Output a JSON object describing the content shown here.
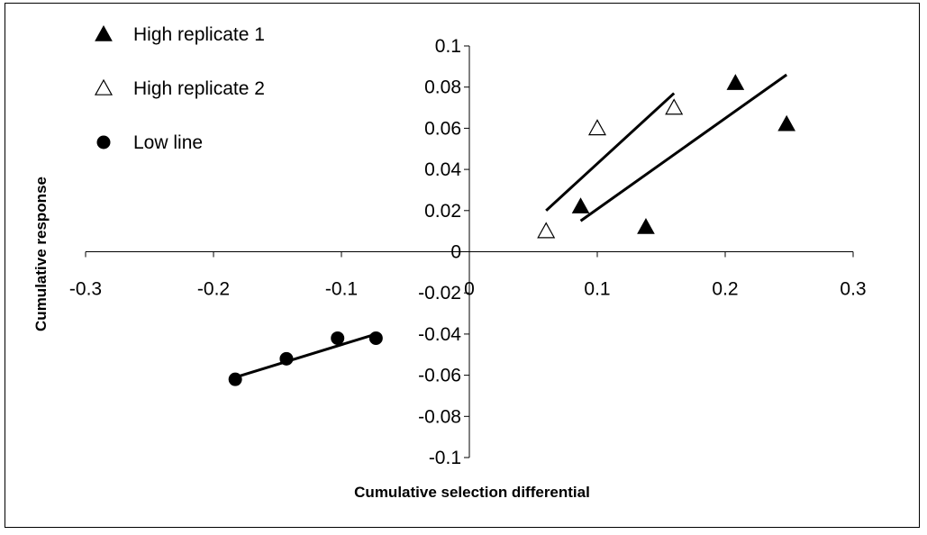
{
  "chart_data": {
    "type": "scatter",
    "xlabel": "Cumulative selection differential",
    "ylabel": "Cumulative response",
    "xlim": [
      -0.3,
      0.3
    ],
    "ylim": [
      -0.1,
      0.1
    ],
    "x_ticks": [
      "-0.3",
      "-0.2",
      "-0.1",
      "0",
      "0.1",
      "0.2",
      "0.3"
    ],
    "y_ticks": [
      "0.1",
      "0.08",
      "0.06",
      "0.04",
      "0.02",
      "0",
      "-0.02",
      "-0.04",
      "-0.06",
      "-0.08",
      "-0.1"
    ],
    "legend_position": "top-left",
    "grid": false,
    "series": [
      {
        "name": "High replicate 1",
        "marker": "filled-triangle",
        "points": [
          [
            0.087,
            0.022
          ],
          [
            0.138,
            0.012
          ],
          [
            0.208,
            0.082
          ],
          [
            0.248,
            0.062
          ]
        ],
        "trendline": [
          [
            0.087,
            0.015
          ],
          [
            0.248,
            0.086
          ]
        ]
      },
      {
        "name": "High replicate 2",
        "marker": "open-triangle",
        "points": [
          [
            0.06,
            0.01
          ],
          [
            0.1,
            0.06
          ],
          [
            0.16,
            0.07
          ]
        ],
        "trendline": [
          [
            0.06,
            0.02
          ],
          [
            0.16,
            0.077
          ]
        ]
      },
      {
        "name": "Low line",
        "marker": "filled-circle",
        "points": [
          [
            -0.183,
            -0.062
          ],
          [
            -0.143,
            -0.052
          ],
          [
            -0.103,
            -0.042
          ],
          [
            -0.073,
            -0.042
          ]
        ],
        "trendline": [
          [
            -0.183,
            -0.061
          ],
          [
            -0.073,
            -0.04
          ]
        ]
      }
    ]
  }
}
